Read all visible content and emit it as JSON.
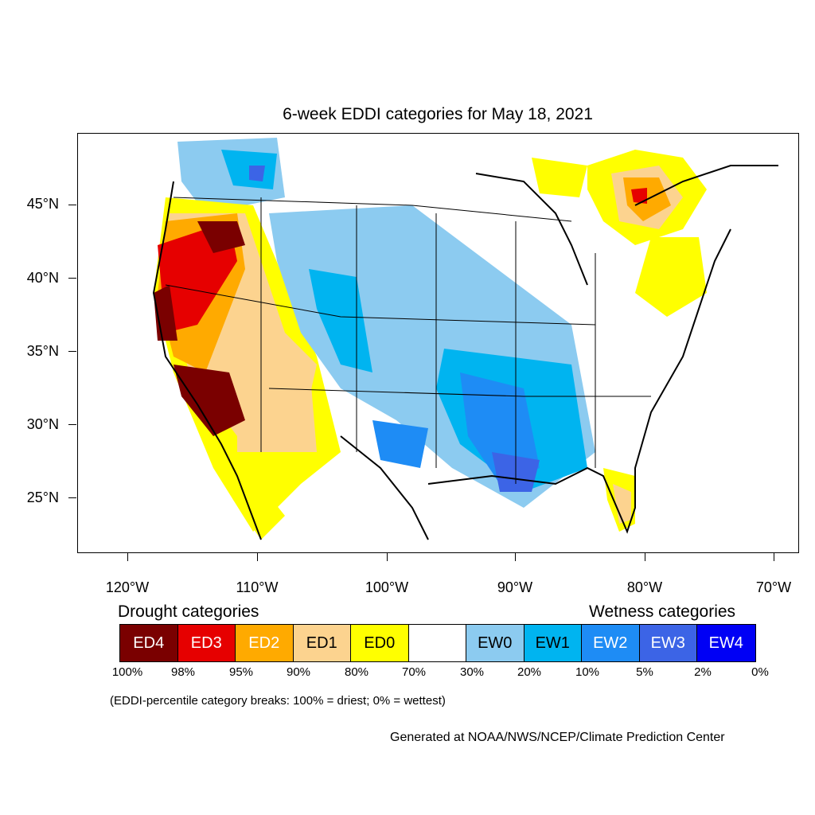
{
  "title": "6-week EDDI categories for May 18, 2021",
  "lat_labels": [
    "45°N",
    "40°N",
    "35°N",
    "30°N",
    "25°N"
  ],
  "lon_labels": [
    "120°W",
    "110°W",
    "100°W",
    "90°W",
    "80°W",
    "70°W"
  ],
  "legend": {
    "drought_title": "Drought categories",
    "wetness_title": "Wetness categories",
    "categories": [
      {
        "label": "ED4",
        "color": "#7a0000",
        "text_color": "#ffffff"
      },
      {
        "label": "ED3",
        "color": "#e60000",
        "text_color": "#ffffff"
      },
      {
        "label": "ED2",
        "color": "#ffaa00",
        "text_color": "#ffffff"
      },
      {
        "label": "ED1",
        "color": "#fcd38f",
        "text_color": "#000000"
      },
      {
        "label": "ED0",
        "color": "#ffff00",
        "text_color": "#000000"
      },
      {
        "label": "",
        "color": "#ffffff",
        "text_color": "#000000"
      },
      {
        "label": "EW0",
        "color": "#8ccbf0",
        "text_color": "#000000"
      },
      {
        "label": "EW1",
        "color": "#00b4f0",
        "text_color": "#000000"
      },
      {
        "label": "EW2",
        "color": "#1e8cf5",
        "text_color": "#ffffff"
      },
      {
        "label": "EW3",
        "color": "#3c64e6",
        "text_color": "#ffffff"
      },
      {
        "label": "EW4",
        "color": "#0000f5",
        "text_color": "#ffffff"
      }
    ],
    "percentiles": [
      "100%",
      "98%",
      "95%",
      "90%",
      "80%",
      "70%",
      "30%",
      "20%",
      "10%",
      "5%",
      "2%",
      "0%"
    ]
  },
  "breaks_note": "(EDDI-percentile category breaks: 100% = driest; 0% = wettest)",
  "credit": "Generated at NOAA/NWS/NCEP/Climate Prediction Center"
}
